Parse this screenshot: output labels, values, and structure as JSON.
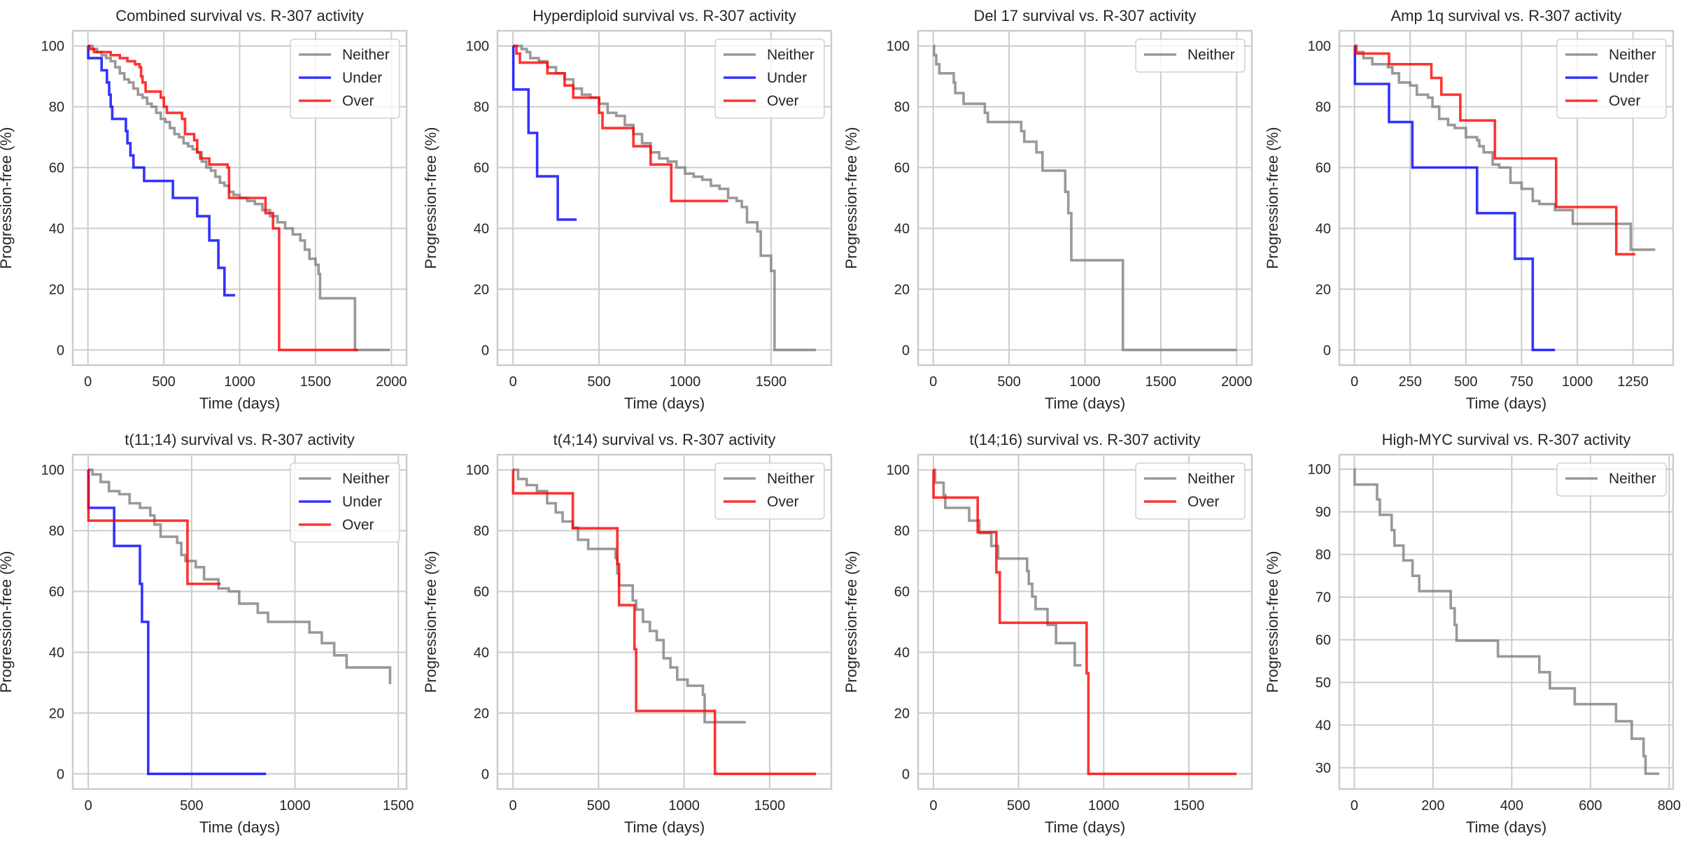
{
  "figure": {
    "series_colors": {
      "Neither": "#808080",
      "Under": "#0000ff",
      "Over": "#ff0000"
    }
  },
  "chart_data": [
    {
      "type": "line",
      "step": "post",
      "title": "Combined survival vs. R-307 activity",
      "xlabel": "Time (days)",
      "ylabel": "Progression-free (%)",
      "xlim": [
        -100,
        2100
      ],
      "ylim": [
        -5,
        105
      ],
      "xticks": [
        0,
        500,
        1000,
        1500,
        2000
      ],
      "yticks": [
        0,
        20,
        40,
        60,
        80,
        100
      ],
      "grid": true,
      "legend_position": "top-right",
      "series": [
        {
          "name": "Neither",
          "x": [
            0,
            30,
            60,
            90,
            120,
            150,
            180,
            210,
            240,
            270,
            300,
            330,
            360,
            390,
            420,
            450,
            480,
            510,
            540,
            570,
            600,
            630,
            660,
            690,
            720,
            750,
            780,
            810,
            840,
            870,
            900,
            930,
            960,
            1000,
            1050,
            1100,
            1150,
            1200,
            1250,
            1300,
            1350,
            1400,
            1430,
            1460,
            1500,
            1520,
            1530,
            1760,
            1990
          ],
          "y": [
            100,
            99,
            98,
            97,
            96,
            95,
            93,
            91,
            89,
            88,
            86,
            84,
            83,
            81,
            80,
            78,
            76,
            75,
            73,
            71,
            70,
            68,
            67,
            66,
            65,
            62,
            60,
            59,
            57,
            55,
            54,
            52,
            51,
            50,
            49,
            48,
            46,
            44,
            42,
            40,
            38,
            36,
            33,
            30,
            28,
            25,
            17,
            0,
            0
          ]
        },
        {
          "name": "Under",
          "x": [
            0,
            2,
            90,
            125,
            140,
            150,
            160,
            250,
            260,
            280,
            300,
            370,
            560,
            720,
            800,
            860,
            900,
            970
          ],
          "y": [
            100,
            96,
            92,
            88,
            84,
            80,
            76,
            72,
            68,
            64,
            60,
            55.6,
            50,
            44,
            36,
            27,
            18,
            18
          ]
        },
        {
          "name": "Over",
          "x": [
            0,
            10,
            40,
            150,
            210,
            260,
            310,
            340,
            350,
            360,
            380,
            480,
            500,
            520,
            620,
            640,
            700,
            720,
            740,
            800,
            920,
            930,
            1170,
            1220,
            1260,
            1780
          ],
          "y": [
            100,
            99,
            98,
            97,
            96,
            95,
            94,
            93,
            90,
            88,
            85,
            83,
            80,
            78,
            76,
            71,
            69,
            65,
            63,
            61,
            60,
            50,
            45,
            40,
            0,
            0
          ]
        }
      ]
    },
    {
      "type": "line",
      "step": "post",
      "title": "Hyperdiploid survival vs. R-307 activity",
      "xlabel": "Time (days)",
      "ylabel": "Progression-free (%)",
      "xlim": [
        -90,
        1850
      ],
      "ylim": [
        -5,
        105
      ],
      "xticks": [
        0,
        500,
        1000,
        1500
      ],
      "yticks": [
        0,
        20,
        40,
        60,
        80,
        100
      ],
      "grid": true,
      "legend_position": "top-right",
      "series": [
        {
          "name": "Neither",
          "x": [
            0,
            50,
            80,
            100,
            150,
            200,
            250,
            300,
            350,
            400,
            450,
            500,
            550,
            600,
            650,
            700,
            750,
            800,
            850,
            900,
            950,
            1000,
            1050,
            1100,
            1150,
            1200,
            1250,
            1300,
            1330,
            1360,
            1420,
            1440,
            1500,
            1520,
            1760
          ],
          "y": [
            100,
            99,
            98,
            96,
            95,
            93,
            91,
            89,
            86,
            84,
            83,
            81,
            78,
            77,
            74,
            71,
            68,
            65,
            63,
            62,
            60,
            58,
            57,
            56,
            54,
            53,
            50,
            49,
            47,
            42,
            39,
            31,
            26,
            0,
            0
          ]
        },
        {
          "name": "Under",
          "x": [
            0,
            2,
            90,
            140,
            260,
            370
          ],
          "y": [
            100,
            85.7,
            71.4,
            57.1,
            42.9,
            42.9
          ]
        },
        {
          "name": "Over",
          "x": [
            0,
            20,
            40,
            200,
            300,
            350,
            500,
            520,
            700,
            800,
            920,
            1250
          ],
          "y": [
            100,
            97.5,
            94.5,
            91,
            87,
            83,
            78,
            73,
            67,
            61,
            49,
            49
          ]
        }
      ]
    },
    {
      "type": "line",
      "step": "post",
      "title": "Del 17 survival vs. R-307 activity",
      "xlabel": "Time (days)",
      "ylabel": "Progression-free (%)",
      "xlim": [
        -100,
        2100
      ],
      "ylim": [
        -5,
        105
      ],
      "xticks": [
        0,
        500,
        1000,
        1500,
        2000
      ],
      "yticks": [
        0,
        20,
        40,
        60,
        80,
        100
      ],
      "grid": true,
      "legend_position": "top-right",
      "series": [
        {
          "name": "Neither",
          "x": [
            0,
            5,
            20,
            40,
            135,
            145,
            200,
            340,
            360,
            580,
            600,
            680,
            720,
            870,
            890,
            910,
            1250,
            2000
          ],
          "y": [
            100,
            97,
            94,
            91,
            88,
            84.5,
            81,
            78,
            75,
            72,
            68.5,
            65,
            59,
            52,
            45,
            29.5,
            0,
            0
          ]
        }
      ]
    },
    {
      "type": "line",
      "step": "post",
      "title": "Amp 1q survival vs. R-307 activity",
      "xlabel": "Time (days)",
      "ylabel": "Progression-free (%)",
      "xlim": [
        -68,
        1430
      ],
      "ylim": [
        -5,
        105
      ],
      "xticks": [
        0,
        250,
        500,
        750,
        1000,
        1250
      ],
      "yticks": [
        0,
        20,
        40,
        60,
        80,
        100
      ],
      "grid": true,
      "legend_position": "top-right",
      "series": [
        {
          "name": "Neither",
          "x": [
            0,
            10,
            40,
            80,
            150,
            170,
            200,
            250,
            280,
            330,
            350,
            380,
            420,
            450,
            500,
            550,
            560,
            580,
            620,
            650,
            700,
            750,
            800,
            830,
            900,
            980,
            1240,
            1350
          ],
          "y": [
            100,
            98,
            96,
            94,
            93,
            91,
            88,
            87,
            84,
            83,
            80,
            76,
            74,
            73,
            70,
            69,
            67,
            65,
            61,
            60,
            55,
            53,
            49,
            48,
            46,
            41.5,
            33,
            33
          ]
        },
        {
          "name": "Under",
          "x": [
            0,
            2,
            155,
            260,
            550,
            720,
            800,
            900
          ],
          "y": [
            100,
            87.5,
            75,
            60,
            45,
            30,
            0,
            0
          ]
        },
        {
          "name": "Over",
          "x": [
            0,
            5,
            155,
            345,
            390,
            475,
            630,
            905,
            1175,
            1260
          ],
          "y": [
            100,
            97.5,
            94,
            89.5,
            84,
            75.5,
            63,
            47,
            31.5,
            31.5
          ]
        }
      ]
    },
    {
      "type": "line",
      "step": "post",
      "title": "t(11;14) survival vs. R-307 activity",
      "xlabel": "Time (days)",
      "ylabel": "Progression-free (%)",
      "xlim": [
        -75,
        1540
      ],
      "ylim": [
        -5,
        105
      ],
      "xticks": [
        0,
        500,
        1000,
        1500
      ],
      "yticks": [
        0,
        20,
        40,
        60,
        80,
        100
      ],
      "grid": true,
      "legend_position": "top-right",
      "series": [
        {
          "name": "Neither",
          "x": [
            0,
            20,
            60,
            100,
            150,
            200,
            250,
            300,
            320,
            350,
            430,
            450,
            470,
            520,
            560,
            630,
            680,
            730,
            820,
            870,
            1070,
            1130,
            1190,
            1250,
            1460
          ],
          "y": [
            100,
            98.5,
            96,
            93,
            92,
            89,
            87.5,
            85,
            82,
            78,
            76,
            72,
            70,
            68,
            64,
            61,
            60,
            56,
            53,
            50,
            46.5,
            43,
            39,
            35,
            29.5
          ]
        },
        {
          "name": "Under",
          "x": [
            0,
            1,
            125,
            250,
            260,
            290,
            860
          ],
          "y": [
            100,
            87.5,
            75,
            62.5,
            50,
            0,
            0
          ]
        },
        {
          "name": "Over",
          "x": [
            0,
            1,
            480,
            640
          ],
          "y": [
            100,
            83.3,
            62.5,
            62.5
          ]
        }
      ]
    },
    {
      "type": "line",
      "step": "post",
      "title": "t(4;14) survival vs. R-307 activity",
      "xlabel": "Time (days)",
      "ylabel": "Progression-free (%)",
      "xlim": [
        -90,
        1860
      ],
      "ylim": [
        -5,
        105
      ],
      "xticks": [
        0,
        500,
        1000,
        1500
      ],
      "yticks": [
        0,
        20,
        40,
        60,
        80,
        100
      ],
      "grid": true,
      "legend_position": "top-right",
      "series": [
        {
          "name": "Neither",
          "x": [
            0,
            30,
            80,
            140,
            200,
            250,
            290,
            350,
            380,
            440,
            600,
            610,
            620,
            700,
            720,
            760,
            800,
            840,
            880,
            920,
            960,
            1020,
            1110,
            1120,
            1360
          ],
          "y": [
            100,
            97,
            95,
            93,
            89,
            86,
            83,
            81,
            77,
            74,
            71,
            66,
            62,
            57,
            54,
            50,
            47,
            44,
            38,
            35,
            31,
            29,
            26,
            17,
            17
          ]
        },
        {
          "name": "Over",
          "x": [
            0,
            1,
            350,
            610,
            620,
            710,
            720,
            1180,
            1770
          ],
          "y": [
            100,
            92.3,
            80.8,
            69,
            55.5,
            41,
            20.7,
            0,
            0
          ]
        }
      ]
    },
    {
      "type": "line",
      "step": "post",
      "title": "t(14;16) survival vs. R-307 activity",
      "xlabel": "Time (days)",
      "ylabel": "Progression-free (%)",
      "xlim": [
        -90,
        1870
      ],
      "ylim": [
        -5,
        105
      ],
      "xticks": [
        0,
        500,
        1000,
        1500
      ],
      "yticks": [
        0,
        20,
        40,
        60,
        80,
        100
      ],
      "grid": true,
      "legend_position": "top-right",
      "series": [
        {
          "name": "Neither",
          "x": [
            0,
            10,
            60,
            70,
            210,
            270,
            340,
            380,
            550,
            560,
            580,
            600,
            670,
            720,
            830,
            870
          ],
          "y": [
            100,
            95.8,
            91.7,
            87.5,
            83.3,
            79.2,
            75,
            70.8,
            66.7,
            62.5,
            58.3,
            54.2,
            49,
            43,
            35.7,
            35.7
          ]
        },
        {
          "name": "Over",
          "x": [
            0,
            1,
            260,
            370,
            390,
            900,
            910,
            1780
          ],
          "y": [
            100,
            90.9,
            79.5,
            66.3,
            49.7,
            33.1,
            0,
            0
          ]
        }
      ]
    },
    {
      "type": "line",
      "step": "post",
      "title": "High-MYC survival vs. R-307 activity",
      "xlabel": "Time (days)",
      "ylabel": "Progression-free (%)",
      "xlim": [
        -38,
        810
      ],
      "ylim": [
        25,
        103.4
      ],
      "xticks": [
        0,
        200,
        400,
        600,
        800
      ],
      "yticks": [
        30,
        40,
        50,
        60,
        70,
        80,
        90,
        100
      ],
      "grid": true,
      "legend_position": "top-right",
      "series": [
        {
          "name": "Neither",
          "x": [
            0,
            1,
            58,
            65,
            95,
            102,
            125,
            148,
            165,
            245,
            255,
            260,
            365,
            470,
            497,
            560,
            665,
            705,
            735,
            740,
            775
          ],
          "y": [
            100,
            96.4,
            92.9,
            89.3,
            85.7,
            82.1,
            78.6,
            75,
            71.4,
            67.4,
            63.5,
            59.8,
            56.1,
            52.4,
            48.6,
            44.9,
            40.9,
            36.8,
            32.7,
            28.6,
            28.6
          ]
        }
      ]
    }
  ]
}
